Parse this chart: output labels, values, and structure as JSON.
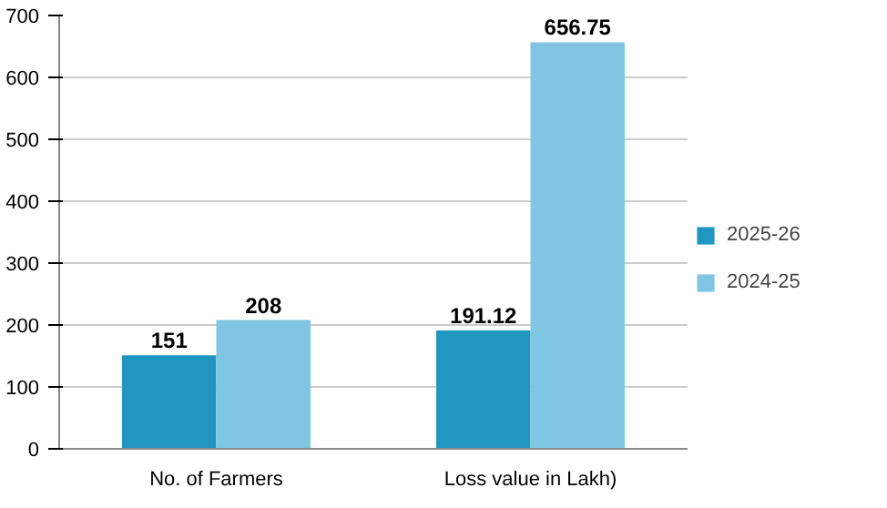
{
  "chart_data": {
    "type": "bar",
    "categories": [
      "No. of Farmers",
      "Loss value in Lakh)"
    ],
    "series": [
      {
        "name": "2025-26",
        "color": "#2196c0",
        "values": [
          151,
          191.12
        ]
      },
      {
        "name": "2024-25",
        "color": "#80c6e2",
        "values": [
          208,
          656.75
        ]
      }
    ],
    "ylim": [
      0,
      700
    ],
    "yticks": [
      0,
      100,
      200,
      300,
      400,
      500,
      600,
      700
    ],
    "grid": "y",
    "legend": "right",
    "data_labels": true
  }
}
